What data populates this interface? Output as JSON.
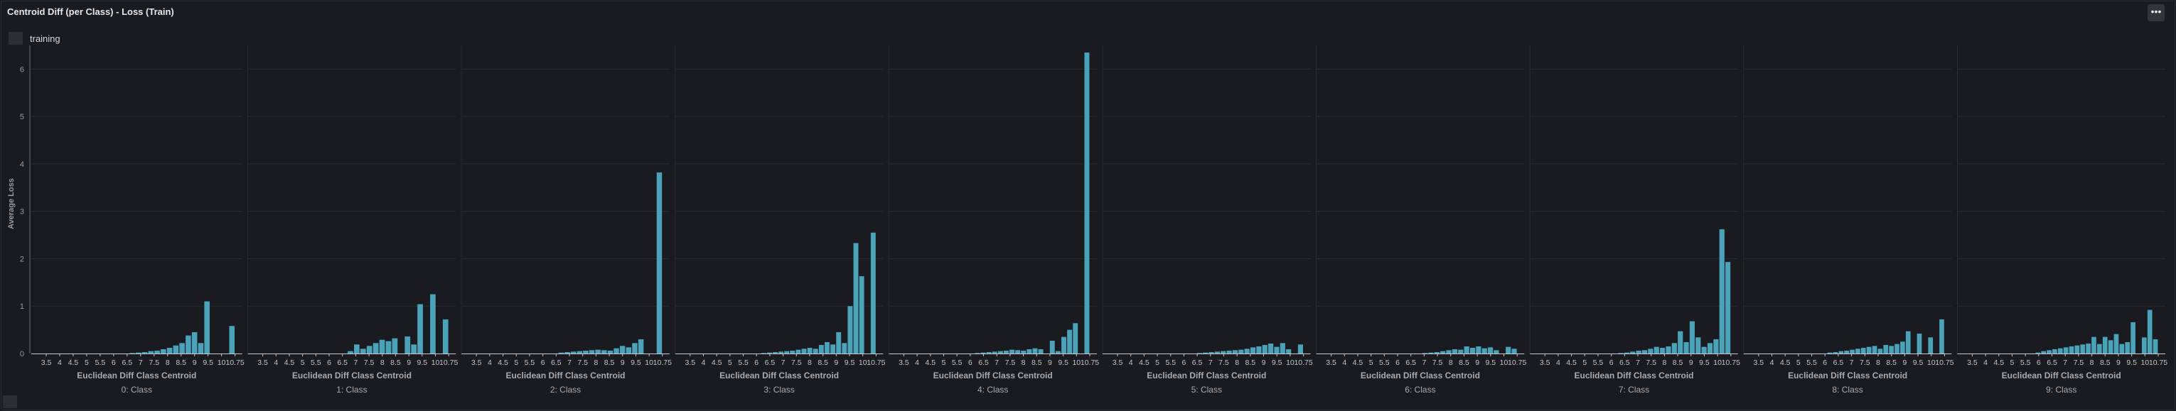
{
  "panel": {
    "title": "Centroid Diff (per Class) - Loss (Train)",
    "menu_icon": "•••"
  },
  "legend": {
    "label": "training"
  },
  "colors": {
    "bar": "#4aa3b9",
    "grid": "#2a2c33",
    "axis": "#6b6d74"
  },
  "chart_data": {
    "type": "bar",
    "title": "Centroid Diff (per Class) - Loss (Train)",
    "ylabel": "Average Loss",
    "xlabel": "Euclidean Diff Class Centroid",
    "ylim": [
      0,
      6.5
    ],
    "yticks": [
      0,
      1,
      2,
      3,
      4,
      5,
      6
    ],
    "xtick_labels": [
      "3.5",
      "4",
      "4.5",
      "5",
      "5.5",
      "6",
      "6.5",
      "7",
      "7.5",
      "8",
      "8.5",
      "9",
      "9.5",
      "10",
      "10.75"
    ],
    "series": [
      {
        "name": "training"
      }
    ],
    "facets": [
      {
        "label": "0: Class",
        "values": [
          0,
          0,
          0,
          0,
          0,
          0,
          0,
          0,
          0,
          0,
          0,
          0,
          0,
          0,
          0.01,
          0.02,
          0.03,
          0.05,
          0.06,
          0.09,
          0.12,
          0.17,
          0.22,
          0.38,
          0.45,
          0.22,
          1.1,
          0,
          0,
          0,
          0.58
        ]
      },
      {
        "label": "1: Class",
        "values": [
          0,
          0,
          0,
          0,
          0,
          0,
          0,
          0,
          0,
          0,
          0,
          0,
          0,
          0,
          0.05,
          0.19,
          0.1,
          0.16,
          0.22,
          0.29,
          0.26,
          0.32,
          0,
          0.36,
          0.19,
          1.04,
          0,
          1.25,
          0,
          0.72
        ]
      },
      {
        "label": "2: Class",
        "values": [
          0,
          0,
          0,
          0,
          0,
          0,
          0,
          0,
          0,
          0,
          0,
          0,
          0,
          0,
          0.02,
          0.03,
          0.04,
          0.05,
          0.06,
          0.07,
          0.08,
          0.07,
          0.06,
          0.11,
          0.16,
          0.13,
          0.22,
          0.3,
          0,
          0,
          3.82
        ]
      },
      {
        "label": "3: Class",
        "values": [
          0,
          0,
          0,
          0,
          0,
          0,
          0,
          0,
          0,
          0,
          0,
          0,
          0,
          0.01,
          0.02,
          0.03,
          0.04,
          0.05,
          0.06,
          0.08,
          0.1,
          0.12,
          0.1,
          0.18,
          0.24,
          0.19,
          0.45,
          0.22,
          1.0,
          2.33,
          1.63,
          0,
          2.55
        ]
      },
      {
        "label": "4: Class",
        "values": [
          0,
          0,
          0,
          0,
          0,
          0,
          0,
          0,
          0,
          0,
          0,
          0,
          0,
          0.01,
          0.02,
          0.03,
          0.04,
          0.05,
          0.06,
          0.08,
          0.07,
          0.06,
          0.09,
          0.11,
          0.09,
          0,
          0.27,
          0.05,
          0.35,
          0.5,
          0.64,
          0,
          6.35
        ]
      },
      {
        "label": "5: Class",
        "values": [
          0,
          0,
          0,
          0,
          0,
          0,
          0,
          0,
          0,
          0,
          0,
          0,
          0,
          0,
          0.01,
          0.02,
          0.03,
          0.04,
          0.05,
          0.06,
          0.07,
          0.08,
          0.1,
          0.13,
          0.15,
          0.18,
          0.21,
          0.14,
          0.22,
          0.09,
          0,
          0.19
        ]
      },
      {
        "label": "6: Class",
        "values": [
          0,
          0,
          0,
          0,
          0,
          0,
          0,
          0,
          0,
          0,
          0,
          0,
          0,
          0,
          0,
          0,
          0.01,
          0.02,
          0.03,
          0.05,
          0.07,
          0.09,
          0.08,
          0.15,
          0.12,
          0.15,
          0.11,
          0.13,
          0.07,
          0,
          0.14,
          0.1
        ]
      },
      {
        "label": "7: Class",
        "values": [
          0,
          0,
          0,
          0,
          0,
          0,
          0,
          0,
          0,
          0,
          0,
          0,
          0,
          0.01,
          0.02,
          0.04,
          0.06,
          0.07,
          0.1,
          0.14,
          0.12,
          0.15,
          0.22,
          0.47,
          0.24,
          0.68,
          0.34,
          0.14,
          0.22,
          0.3,
          2.62,
          1.93
        ]
      },
      {
        "label": "8: Class",
        "values": [
          0,
          0,
          0,
          0,
          0,
          0,
          0,
          0,
          0,
          0,
          0,
          0,
          0,
          0.02,
          0.03,
          0.05,
          0.06,
          0.08,
          0.1,
          0.12,
          0.14,
          0.16,
          0.1,
          0.18,
          0.16,
          0.2,
          0.25,
          0.47,
          0,
          0.42,
          0,
          0.34,
          0,
          0.72
        ]
      },
      {
        "label": "9: Class",
        "values": [
          0,
          0,
          0,
          0,
          0,
          0,
          0,
          0,
          0,
          0,
          0,
          0,
          0.02,
          0.05,
          0.07,
          0.09,
          0.11,
          0.13,
          0.15,
          0.17,
          0.19,
          0.21,
          0.35,
          0.2,
          0.35,
          0.28,
          0.41,
          0.2,
          0.24,
          0.66,
          0,
          0.34,
          0.92,
          0.3
        ]
      }
    ]
  }
}
